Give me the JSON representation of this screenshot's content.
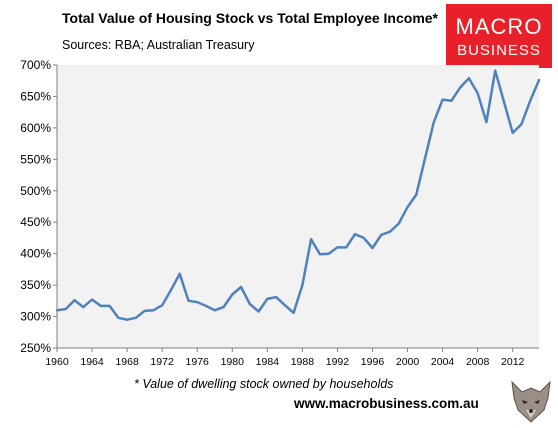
{
  "header": {
    "title": "Total Value of Housing Stock vs Total Employee Income*",
    "subtitle": "Sources: RBA; Australian Treasury"
  },
  "logo": {
    "line1": "MACRO",
    "line2": "BUSINESS",
    "color": "#e8202a"
  },
  "footer": {
    "footnote": "* Value of dwelling stock owned by households",
    "website": "www.macrobusiness.com.au",
    "mascot_icon": "wolf-head-icon"
  },
  "chart_data": {
    "type": "line",
    "title": "Total Value of Housing Stock vs Total Employee Income*",
    "subtitle": "Sources: RBA; Australian Treasury",
    "xlabel": "",
    "ylabel": "",
    "x_ticks": [
      "1960",
      "1964",
      "1968",
      "1972",
      "1976",
      "1980",
      "1984",
      "1988",
      "1992",
      "1996",
      "2000",
      "2004",
      "2008",
      "2012"
    ],
    "y_ticks": [
      "250%",
      "300%",
      "350%",
      "400%",
      "450%",
      "500%",
      "550%",
      "600%",
      "650%",
      "700%"
    ],
    "xlim": [
      1960,
      2015
    ],
    "ylim": [
      250,
      700
    ],
    "grid": false,
    "plot_background": "#f2f2f2",
    "line_color": "#4f81bd",
    "series": [
      {
        "x": [
          1960,
          1961,
          1962,
          1963,
          1964,
          1965,
          1966,
          1967,
          1968,
          1969,
          1970,
          1971,
          1972,
          1973,
          1974,
          1975,
          1976,
          1977,
          1978,
          1979,
          1980,
          1981,
          1982,
          1983,
          1984,
          1985,
          1986,
          1987,
          1988,
          1989,
          1990,
          1991,
          1992,
          1993,
          1994,
          1995,
          1996,
          1997,
          1998,
          1999,
          2000,
          2001,
          2002,
          2003,
          2004,
          2005,
          2006,
          2007,
          2008,
          2009,
          2010,
          2011,
          2012,
          2013,
          2014,
          2015
        ],
        "y": [
          310,
          312,
          326,
          315,
          327,
          317,
          317,
          298,
          295,
          298,
          309,
          310,
          318,
          342,
          368,
          325,
          323,
          317,
          310,
          315,
          335,
          347,
          320,
          308,
          328,
          331,
          318,
          306,
          350,
          423,
          399,
          400,
          410,
          410,
          431,
          425,
          409,
          430,
          435,
          448,
          474,
          494,
          552,
          609,
          645,
          643,
          664,
          679,
          655,
          609,
          691,
          642,
          592,
          606,
          643,
          676
        ]
      }
    ]
  }
}
